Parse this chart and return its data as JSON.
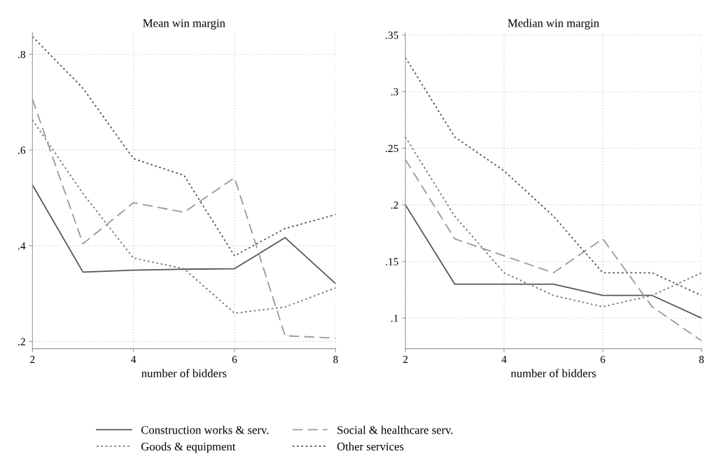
{
  "chart_data": [
    {
      "type": "line",
      "title": "Mean win margin",
      "xlabel": "number of bidders",
      "x": [
        2,
        3,
        4,
        5,
        6,
        7,
        8
      ],
      "xlim": [
        2,
        8
      ],
      "xticks": [
        2,
        4,
        6,
        8
      ],
      "ylim": [
        0.185,
        0.845
      ],
      "yticks": [
        {
          "value": 0.2,
          "label": ".2"
        },
        {
          "value": 0.4,
          "label": ".4"
        },
        {
          "value": 0.6,
          "label": ".6"
        },
        {
          "value": 0.8,
          "label": ".8"
        }
      ],
      "grid": true,
      "legend": "bottom",
      "marker": "none",
      "series": [
        {
          "name": "Construction works & serv.",
          "color": "#555555",
          "line_style": "solid",
          "values": [
            0.527,
            0.345,
            0.349,
            0.351,
            0.352,
            0.417,
            0.321
          ]
        },
        {
          "name": "Goods & equipment",
          "color": "#777777",
          "line_style": "dotted",
          "values": [
            0.663,
            0.509,
            0.374,
            0.352,
            0.259,
            0.272,
            0.312
          ]
        },
        {
          "name": "Social & healthcare serv.",
          "color": "#999999",
          "line_style": "dashed",
          "values": [
            0.706,
            0.404,
            0.49,
            0.47,
            0.542,
            0.212,
            0.207
          ]
        },
        {
          "name": "Other services",
          "color": "#555555",
          "line_style": "dotted",
          "values": [
            0.837,
            0.729,
            0.582,
            0.547,
            0.379,
            0.436,
            0.465
          ]
        }
      ]
    },
    {
      "type": "line",
      "title": "Median win margin",
      "xlabel": "number of bidders",
      "x": [
        2,
        3,
        4,
        5,
        6,
        7,
        8
      ],
      "xlim": [
        2,
        8
      ],
      "xticks": [
        2,
        4,
        6,
        8
      ],
      "ylim": [
        0.073,
        0.352
      ],
      "yticks": [
        {
          "value": 0.1,
          "label": ".1"
        },
        {
          "value": 0.15,
          "label": ".15"
        },
        {
          "value": 0.2,
          "label": ".2"
        },
        {
          "value": 0.25,
          "label": ".25"
        },
        {
          "value": 0.3,
          "label": ".3"
        },
        {
          "value": 0.35,
          "label": ".35"
        }
      ],
      "grid": true,
      "marker": "none",
      "series": [
        {
          "color": "#555555",
          "line_style": "solid",
          "values": [
            0.2,
            0.13,
            0.13,
            0.13,
            0.12,
            0.12,
            0.1
          ]
        },
        {
          "color": "#777777",
          "line_style": "dotted",
          "values": [
            0.26,
            0.19,
            0.14,
            0.12,
            0.11,
            0.12,
            0.14
          ]
        },
        {
          "color": "#999999",
          "line_style": "dashed",
          "values": [
            0.24,
            0.17,
            0.155,
            0.14,
            0.17,
            0.11,
            0.08
          ]
        },
        {
          "color": "#555555",
          "line_style": "dotted",
          "values": [
            0.33,
            0.26,
            0.23,
            0.19,
            0.14,
            0.14,
            0.12
          ]
        }
      ]
    }
  ]
}
